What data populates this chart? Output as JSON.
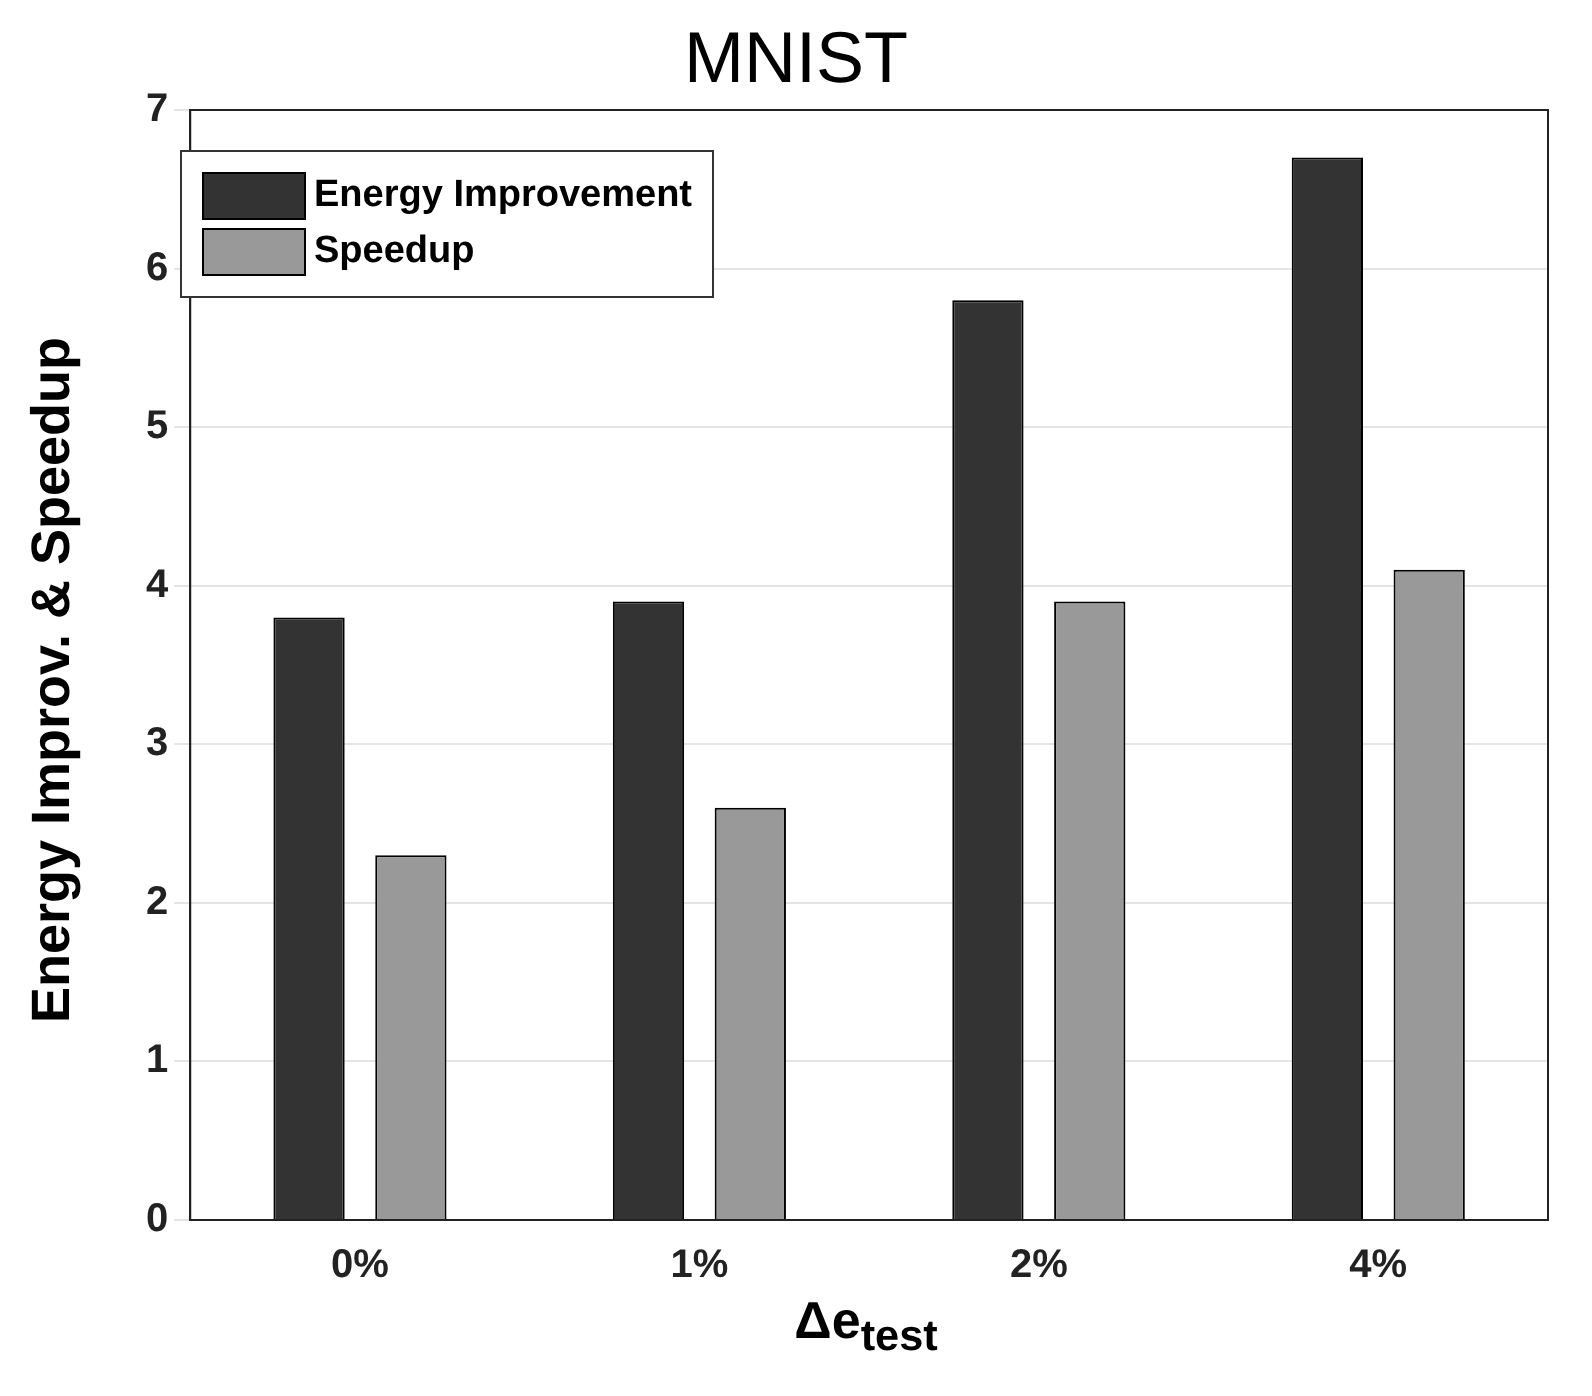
{
  "chart_data": {
    "type": "bar",
    "title": "MNIST",
    "xlabel": "Δe$_{test}$",
    "ylabel": "Energy Improv. & Speedup",
    "categories": [
      "0%",
      "1%",
      "2%",
      "4%"
    ],
    "series": [
      {
        "name": "Energy Improvement",
        "color": "#333333",
        "values": [
          3.8,
          3.9,
          5.8,
          6.7
        ]
      },
      {
        "name": "Speedup",
        "color": "#999999",
        "values": [
          2.3,
          2.6,
          3.9,
          4.1
        ]
      }
    ],
    "ylim": [
      0,
      7
    ],
    "yticks": [
      0,
      1,
      2,
      3,
      4,
      5,
      6,
      7
    ],
    "grid": "y",
    "legend": "top left"
  }
}
